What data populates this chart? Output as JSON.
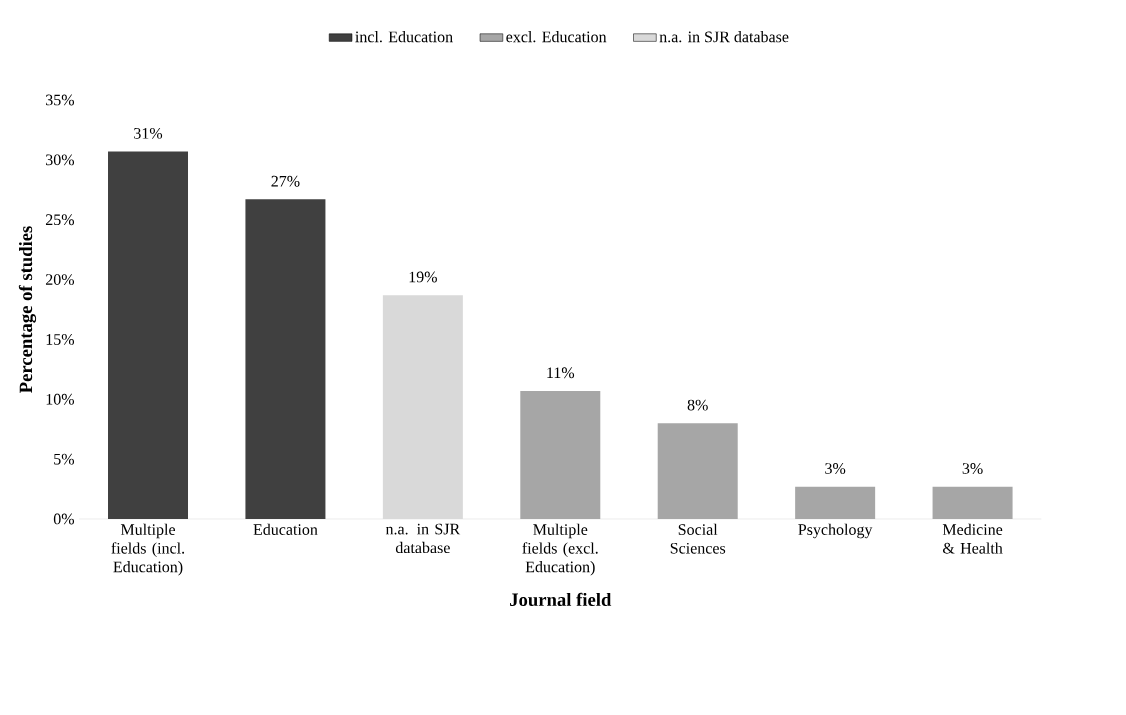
{
  "chart_data": {
    "type": "bar",
    "xlabel": "Journal field",
    "ylabel": "Percentage of studies",
    "categories": [
      "Multiple fields (incl. Education)",
      "Education",
      "n.a. in SJR database",
      "Multiple fields (excl. Education)",
      "Social Sciences",
      "Psychology",
      "Medicine & Health"
    ],
    "series": [
      {
        "name": "incl. Education",
        "color": "#404040",
        "values": [
          30.7,
          26.7,
          null,
          null,
          null,
          null,
          null
        ],
        "value_labels": [
          "31%",
          "27%",
          null,
          null,
          null,
          null,
          null
        ]
      },
      {
        "name": "excl. Education",
        "color": "#a6a6a6",
        "values": [
          null,
          null,
          null,
          10.7,
          8.0,
          2.7,
          2.7
        ],
        "value_labels": [
          null,
          null,
          null,
          "11%",
          "8%",
          "3%",
          "3%"
        ]
      },
      {
        "name": "n.a. in SJR database",
        "color": "#d9d9d9",
        "values": [
          null,
          null,
          18.7,
          null,
          null,
          null,
          null
        ],
        "value_labels": [
          null,
          null,
          "19%",
          null,
          null,
          null,
          null
        ]
      }
    ],
    "ylim": [
      0,
      35
    ],
    "yticks": [
      {
        "value": 0,
        "label": "0%"
      },
      {
        "value": 5,
        "label": "5%"
      },
      {
        "value": 10,
        "label": "10%"
      },
      {
        "value": 15,
        "label": "15%"
      },
      {
        "value": 20,
        "label": "20%"
      },
      {
        "value": 25,
        "label": "25%"
      },
      {
        "value": 30,
        "label": "30%"
      },
      {
        "value": 35,
        "label": "35%"
      }
    ],
    "legend": "top"
  }
}
